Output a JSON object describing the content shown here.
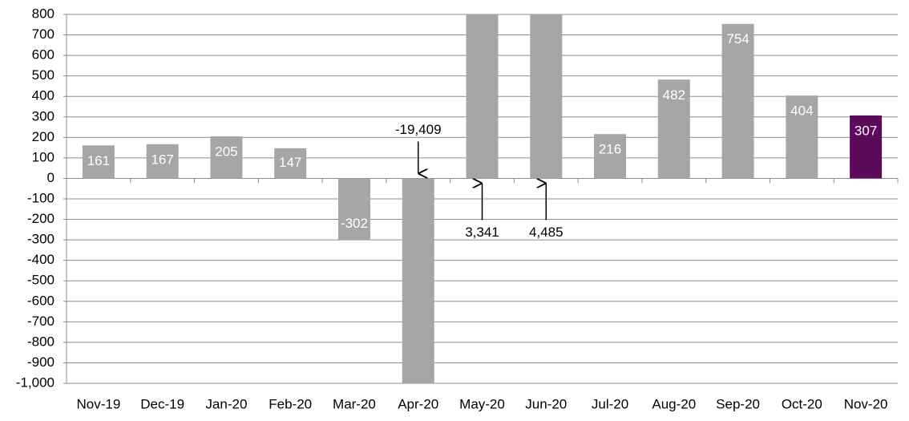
{
  "chart_data": {
    "type": "bar",
    "categories": [
      "Nov-19",
      "Dec-19",
      "Jan-20",
      "Feb-20",
      "Mar-20",
      "Apr-20",
      "May-20",
      "Jun-20",
      "Jul-20",
      "Aug-20",
      "Sep-20",
      "Oct-20",
      "Nov-20"
    ],
    "values": [
      161,
      167,
      205,
      147,
      -302,
      -19409,
      3341,
      4485,
      216,
      482,
      754,
      404,
      307
    ],
    "value_labels": [
      "161",
      "167",
      "205",
      "147",
      "-302",
      "-19,409",
      "3,341",
      "4,485",
      "216",
      "482",
      "754",
      "404",
      "307"
    ],
    "colors": [
      "#a6a6a6",
      "#a6a6a6",
      "#a6a6a6",
      "#a6a6a6",
      "#a6a6a6",
      "#a6a6a6",
      "#a6a6a6",
      "#a6a6a6",
      "#a6a6a6",
      "#a6a6a6",
      "#a6a6a6",
      "#a6a6a6",
      "#5c0a5a"
    ],
    "ylim": [
      -1000,
      800
    ],
    "yticks": [
      {
        "value": -1000,
        "label": "-1,000"
      },
      -900,
      -800,
      -700,
      -600,
      -500,
      -400,
      -300,
      -200,
      -100,
      0,
      100,
      200,
      300,
      400,
      500,
      600,
      700,
      800
    ],
    "grid": true
  }
}
